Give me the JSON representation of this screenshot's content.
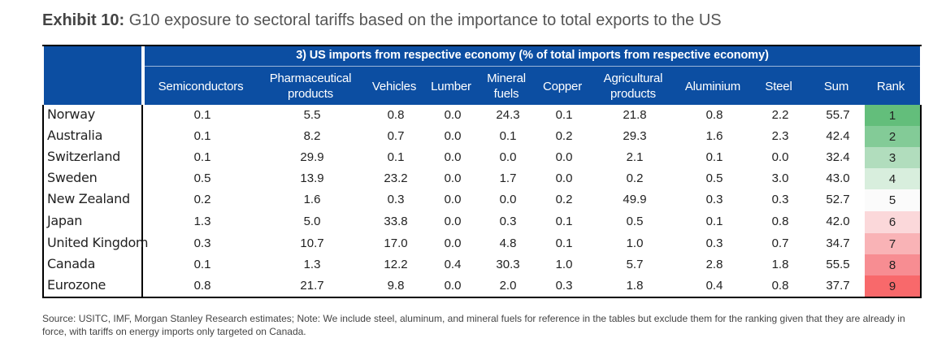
{
  "exhibit": {
    "label": "Exhibit 10:",
    "title": "G10 exposure to sectoral tariffs based on the importance to total exports to the US"
  },
  "table": {
    "group_header": "3) US imports from respective economy (% of total imports from respective economy)",
    "columns": [
      "Semiconductors",
      "Pharmaceutical\nproducts",
      "Vehicles",
      "Lumber",
      "Mineral\nfuels",
      "Copper",
      "Agricultural\nproducts",
      "Aluminium",
      "Steel",
      "Sum",
      "Rank"
    ],
    "rows": [
      {
        "name": "Norway",
        "values": [
          "0.1",
          "5.5",
          "0.8",
          "0.0",
          "24.3",
          "0.1",
          "21.8",
          "0.8",
          "2.2",
          "55.7"
        ],
        "rank": "1",
        "rank_color": "#63be7b"
      },
      {
        "name": "Australia",
        "values": [
          "0.1",
          "8.2",
          "0.7",
          "0.0",
          "0.1",
          "0.2",
          "29.3",
          "1.6",
          "2.3",
          "42.4"
        ],
        "rank": "2",
        "rank_color": "#83cb97"
      },
      {
        "name": "Switzerland",
        "values": [
          "0.1",
          "29.9",
          "0.1",
          "0.0",
          "0.0",
          "0.0",
          "2.1",
          "0.1",
          "0.0",
          "32.4"
        ],
        "rank": "3",
        "rank_color": "#b1ddbd"
      },
      {
        "name": "Sweden",
        "values": [
          "0.5",
          "13.9",
          "23.2",
          "0.0",
          "1.7",
          "0.0",
          "0.2",
          "0.5",
          "3.0",
          "43.0"
        ],
        "rank": "4",
        "rank_color": "#d8eedd"
      },
      {
        "name": "New Zealand",
        "values": [
          "0.2",
          "1.6",
          "0.3",
          "0.0",
          "0.0",
          "0.2",
          "49.9",
          "0.3",
          "0.3",
          "52.7"
        ],
        "rank": "5",
        "rank_color": "#fbfbfb"
      },
      {
        "name": "Japan",
        "values": [
          "1.3",
          "5.0",
          "33.8",
          "0.0",
          "0.3",
          "0.1",
          "0.5",
          "0.1",
          "0.8",
          "42.0"
        ],
        "rank": "6",
        "rank_color": "#fbd8da"
      },
      {
        "name": "United Kingdom",
        "values": [
          "0.3",
          "10.7",
          "17.0",
          "0.0",
          "4.8",
          "0.1",
          "1.0",
          "0.3",
          "0.7",
          "34.7"
        ],
        "rank": "7",
        "rank_color": "#f9b3b6"
      },
      {
        "name": "Canada",
        "values": [
          "0.1",
          "1.3",
          "12.2",
          "0.4",
          "30.3",
          "1.0",
          "5.7",
          "2.8",
          "1.8",
          "55.5"
        ],
        "rank": "8",
        "rank_color": "#f78d92"
      },
      {
        "name": "Eurozone",
        "values": [
          "0.8",
          "21.7",
          "9.8",
          "0.0",
          "2.0",
          "0.3",
          "1.8",
          "0.4",
          "0.8",
          "37.7"
        ],
        "rank": "9",
        "rank_color": "#f8696b"
      }
    ]
  },
  "source": "Source: USITC, IMF, Morgan Stanley Research estimates; Note: We include steel, aluminum, and mineral fuels for reference in the tables but exclude them for the ranking given that they are already in force, with tariffs on energy imports only targeted on Canada."
}
